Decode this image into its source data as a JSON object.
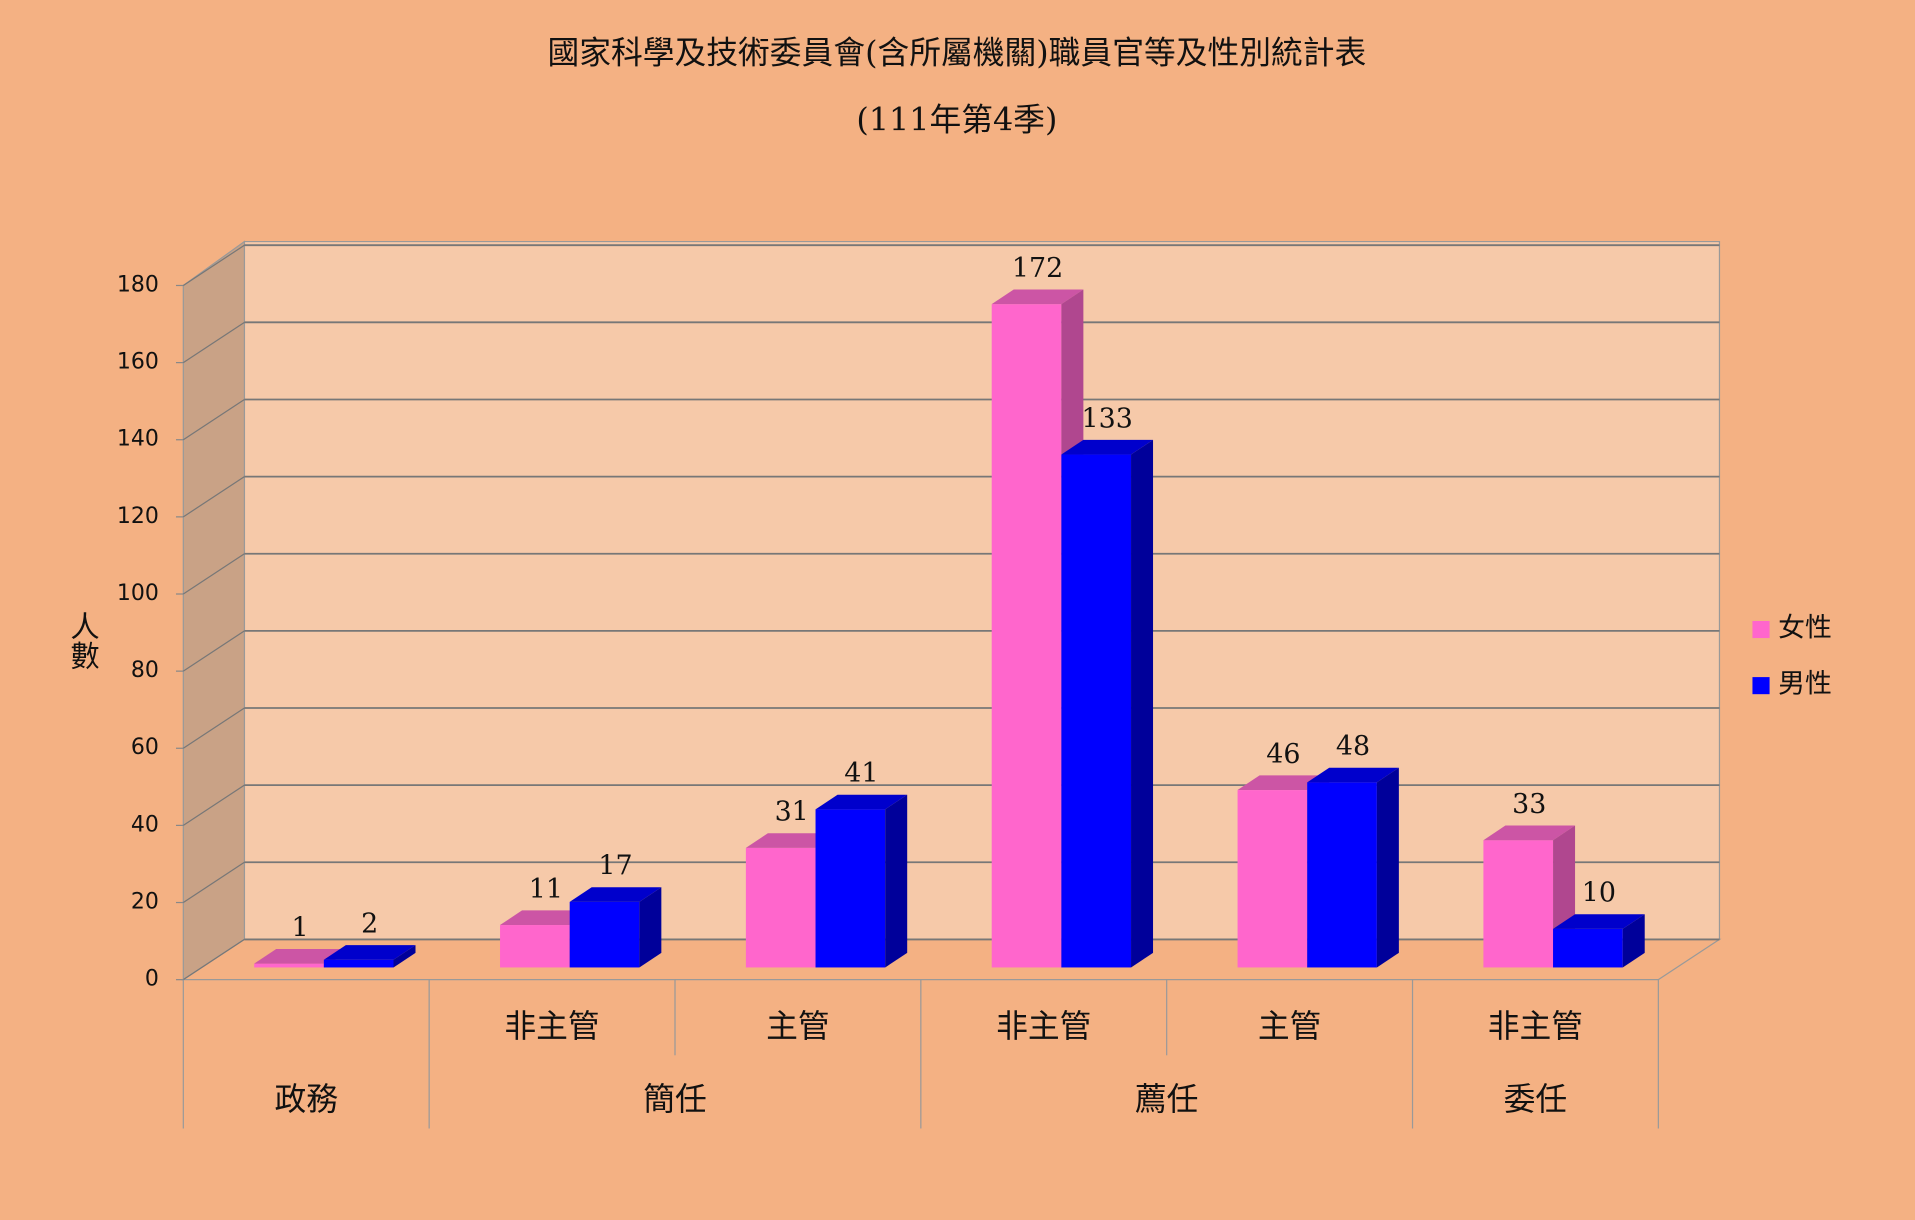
{
  "chart_data": {
    "type": "bar3d",
    "title": "國家科學及技術委員會(含所屬機關)職員官等及性別統計表",
    "subtitle": "(111年第4季)",
    "y_label": "人數",
    "categories": [
      null,
      "非主管",
      "主管",
      "非主管",
      "主管",
      "非主管"
    ],
    "category_groups": [
      "政務",
      "簡任",
      "簡任",
      "薦任",
      "薦任",
      "委任"
    ],
    "series": [
      {
        "name": "女性",
        "color": "#ff66cc",
        "values": [
          1,
          11,
          31,
          172,
          46,
          33
        ]
      },
      {
        "name": "男性",
        "color": "#0000ff",
        "values": [
          2,
          17,
          41,
          133,
          48,
          10
        ]
      }
    ],
    "ylim": [
      0,
      180
    ],
    "yticks": [
      0,
      20,
      40,
      60,
      80,
      100,
      120,
      140,
      160,
      180
    ],
    "grid": true,
    "legend": "right"
  }
}
